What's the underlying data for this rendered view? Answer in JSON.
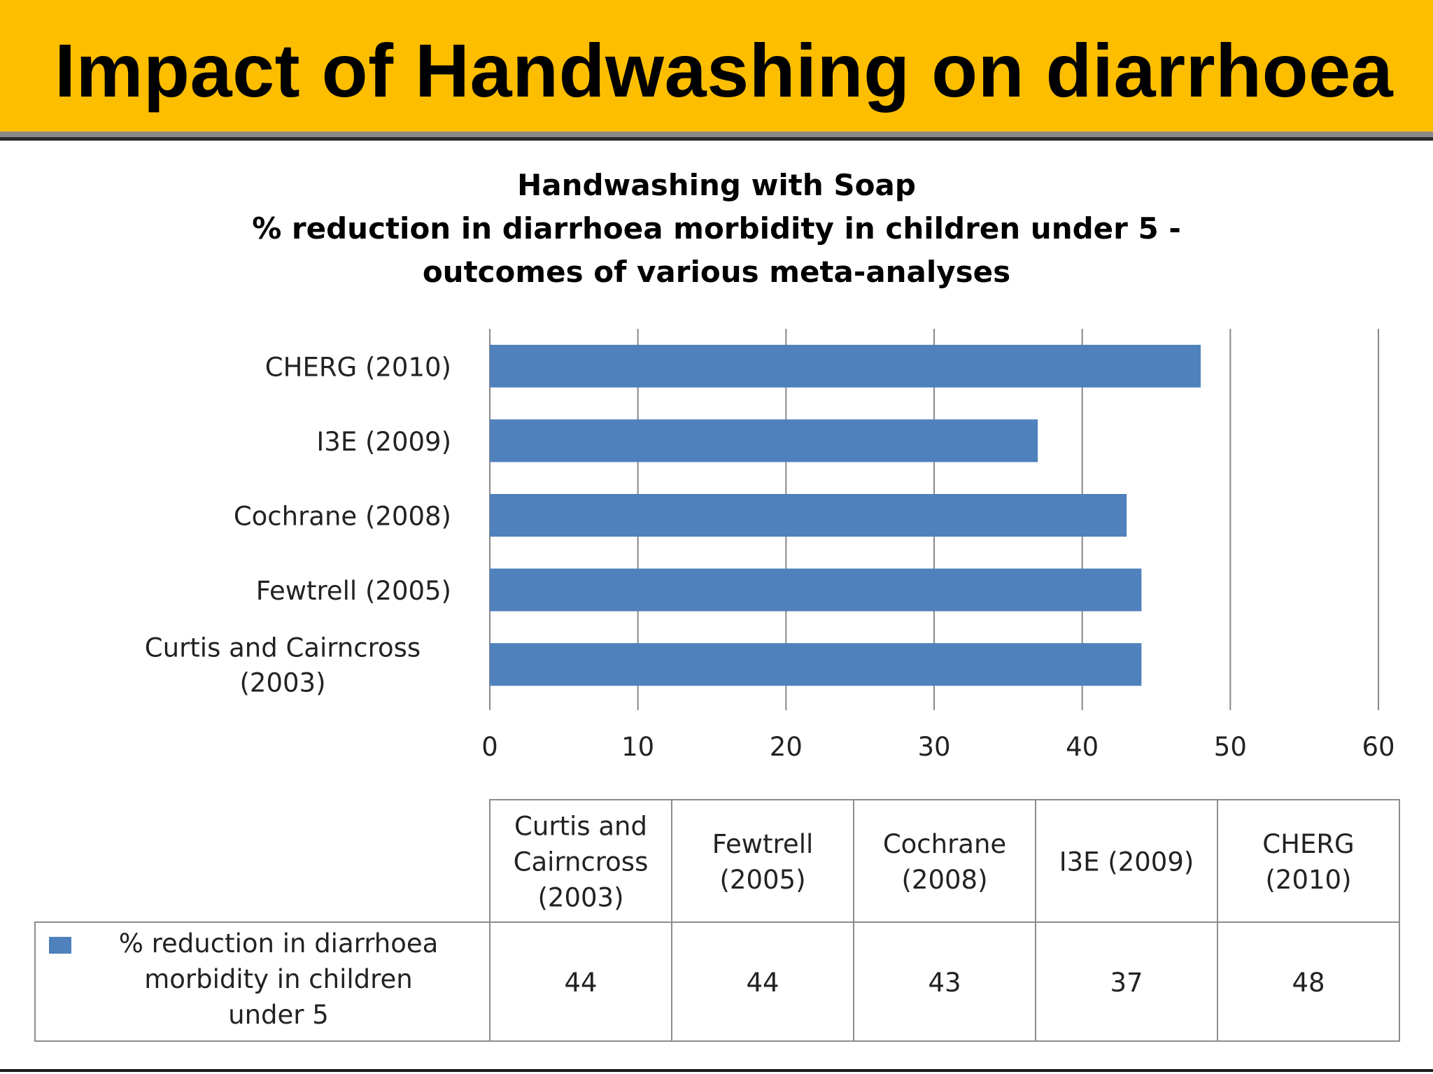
{
  "slide": {
    "title": "Impact of Handwashing on diarrhoea"
  },
  "chart_data": {
    "type": "bar",
    "orientation": "horizontal",
    "title_lines": [
      "Handwashing with Soap",
      "% reduction in diarrhoea morbidity  in children under 5 -",
      "outcomes of various meta-analyses"
    ],
    "categories": [
      "Curtis and Cairncross (2003)",
      "Fewtrell (2005)",
      "Cochrane (2008)",
      "I3E (2009)",
      "CHERG (2010)"
    ],
    "axis_label_lines": [
      [
        "Curtis and Cairncross",
        "(2003)"
      ],
      [
        "Fewtrell (2005)"
      ],
      [
        "Cochrane (2008)"
      ],
      [
        "I3E (2009)"
      ],
      [
        "CHERG (2010)"
      ]
    ],
    "series": [
      {
        "name": "% reduction in diarrhoea morbidity in children under 5",
        "values": [
          44,
          44,
          43,
          37,
          48
        ],
        "color": "#4F81BD"
      }
    ],
    "xlim": [
      0,
      60
    ],
    "xticks": [
      "0",
      "10",
      "20",
      "30",
      "40",
      "50",
      "60"
    ],
    "grid": true,
    "legend": "data table below chart",
    "data_table": {
      "header_lines": [
        [
          "Curtis and",
          "Cairncross",
          "(2003)"
        ],
        [
          "Fewtrell",
          "(2005)"
        ],
        [
          "Cochrane",
          "(2008)"
        ],
        [
          "I3E (2009)"
        ],
        [
          "CHERG",
          "(2010)"
        ]
      ],
      "series_label_lines": [
        "% reduction in diarrhoea",
        "morbidity in children",
        "under 5"
      ],
      "values": [
        "44",
        "44",
        "43",
        "37",
        "48"
      ]
    }
  }
}
